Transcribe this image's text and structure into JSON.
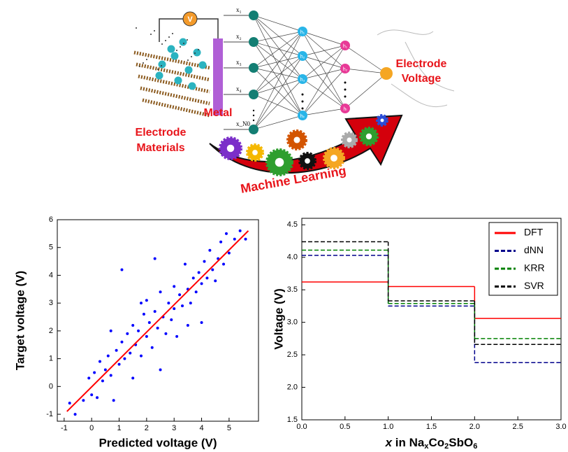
{
  "diagram": {
    "voltmeter": "V",
    "inputs": [
      "x₁",
      "x₂",
      "x₃",
      "x₄",
      "x_N0"
    ],
    "hidden1": [
      "h₁",
      "h₂",
      "h₃",
      "hₖ"
    ],
    "hidden2": [
      "h₁",
      "h₂",
      "hₗ"
    ],
    "metal": "Metal",
    "materials": [
      "Electrode",
      "Materials"
    ],
    "output": [
      "Electrode",
      "Voltage"
    ],
    "ml": "Machine Learning"
  },
  "chart_data": [
    {
      "type": "scatter",
      "xlabel": "Predicted voltage (V)",
      "ylabel": "Target voltage (V)",
      "xlim": [
        -1.25,
        6.07
      ],
      "ylim": [
        -1.25,
        6
      ],
      "xticks": [
        -1,
        0,
        1,
        2,
        3,
        4,
        5
      ],
      "yticks": [
        -1,
        0,
        1,
        2,
        3,
        4,
        5,
        6
      ],
      "points": {
        "color": "#0000ff",
        "x": [
          -0.8,
          -0.6,
          -0.3,
          -0.1,
          0,
          0.1,
          0.2,
          0.3,
          0.4,
          0.5,
          0.6,
          0.7,
          0.8,
          0.9,
          1.0,
          1.1,
          1.1,
          1.2,
          1.3,
          1.4,
          1.5,
          1.5,
          1.6,
          1.7,
          1.8,
          1.9,
          2.0,
          2.0,
          2.1,
          2.2,
          2.3,
          2.4,
          2.5,
          2.5,
          2.6,
          2.7,
          2.8,
          2.9,
          3.0,
          3.0,
          3.1,
          3.2,
          3.3,
          3.4,
          3.5,
          3.6,
          3.7,
          3.8,
          3.9,
          4.0,
          4.0,
          4.1,
          4.2,
          4.3,
          4.4,
          4.5,
          4.6,
          4.7,
          4.8,
          4.9,
          5.0,
          5.2,
          5.4,
          5.6,
          2.3,
          3.5,
          1.8,
          0.7
        ],
        "y": [
          -0.6,
          -1.0,
          -0.5,
          0.3,
          -0.3,
          0.5,
          -0.4,
          0.9,
          0.2,
          0.6,
          1.1,
          0.4,
          -0.5,
          1.3,
          0.8,
          1.6,
          4.2,
          1.0,
          1.9,
          1.2,
          0.3,
          2.2,
          1.5,
          2.0,
          1.1,
          2.6,
          1.8,
          3.1,
          2.3,
          1.4,
          2.7,
          2.1,
          0.6,
          3.4,
          2.5,
          1.9,
          3.0,
          2.4,
          3.6,
          2.8,
          1.8,
          3.3,
          2.9,
          4.4,
          3.5,
          3.0,
          3.9,
          3.4,
          4.1,
          2.3,
          3.7,
          4.5,
          3.9,
          4.9,
          4.2,
          3.8,
          4.6,
          5.2,
          4.4,
          5.5,
          4.8,
          5.3,
          5.6,
          5.3,
          4.6,
          2.2,
          3.0,
          2.0
        ]
      },
      "fit": {
        "color": "#ff0000",
        "x": [
          -0.9,
          5.7
        ],
        "y": [
          -0.9,
          5.6
        ]
      }
    },
    {
      "type": "step",
      "xlabel": [
        "x",
        " in Na",
        "x",
        "Co",
        "2",
        "SbO",
        "6"
      ],
      "ylabel": "Voltage (V)",
      "xlim": [
        0,
        3
      ],
      "ylim": [
        1.5,
        4.6
      ],
      "xticks": [
        {
          "value": 0,
          "label": "0.0"
        },
        0.5,
        {
          "value": 1,
          "label": "1.0"
        },
        1.5,
        {
          "value": 2,
          "label": "2.0"
        },
        2.5,
        {
          "value": 3,
          "label": "3.0"
        }
      ],
      "yticks": [
        1.5,
        {
          "value": 2,
          "label": "2.0"
        },
        2.5,
        {
          "value": 3,
          "label": "3.0"
        },
        3.5,
        {
          "value": 4,
          "label": "4.0"
        },
        4.5
      ],
      "x": [
        0,
        1,
        2
      ],
      "legend": "upper right",
      "series": [
        {
          "name": "DFT",
          "color": "#ff0000",
          "dash": false,
          "values": [
            3.62,
            3.55,
            3.06
          ]
        },
        {
          "name": "dNN",
          "color": "#00008b",
          "dash": true,
          "values": [
            4.03,
            3.25,
            2.38
          ]
        },
        {
          "name": "KRR",
          "color": "#008000",
          "dash": true,
          "values": [
            4.11,
            3.29,
            2.75
          ]
        },
        {
          "name": "SVR",
          "color": "#000000",
          "dash": true,
          "values": [
            4.24,
            3.33,
            2.66
          ]
        }
      ]
    }
  ]
}
